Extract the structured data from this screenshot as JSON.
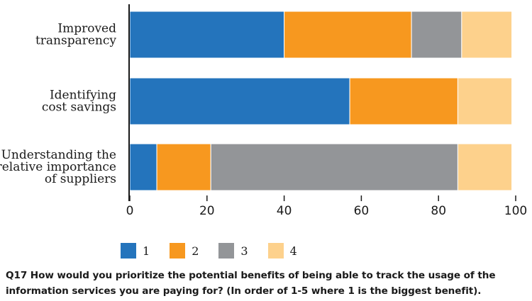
{
  "chart_data": {
    "type": "bar",
    "orientation": "horizontal",
    "stacked": true,
    "categories": [
      [
        "Improved",
        "transparency"
      ],
      [
        "Identifying",
        "cost savings"
      ],
      [
        "Understanding the",
        "relative importance",
        "of suppliers"
      ]
    ],
    "series": [
      {
        "name": "1",
        "color": "#2474bc",
        "values": [
          40,
          57,
          7
        ]
      },
      {
        "name": "2",
        "color": "#f7981f",
        "values": [
          33,
          28,
          14
        ]
      },
      {
        "name": "3",
        "color": "#939598",
        "values": [
          13,
          0,
          64
        ]
      },
      {
        "name": "4",
        "color": "#fdd18c",
        "values": [
          13,
          14,
          14
        ]
      }
    ],
    "xlim": [
      0,
      100
    ],
    "xticks": [
      "0",
      "20",
      "40",
      "60",
      "80",
      "100"
    ],
    "legend_position": "bottom",
    "grid": false
  },
  "caption": {
    "line1": "Q17 How would you prioritize the potential benefits of being able to track the usage of the",
    "line2": "information services you are paying for? (In order of 1-5 where 1 is the biggest benefit)."
  }
}
